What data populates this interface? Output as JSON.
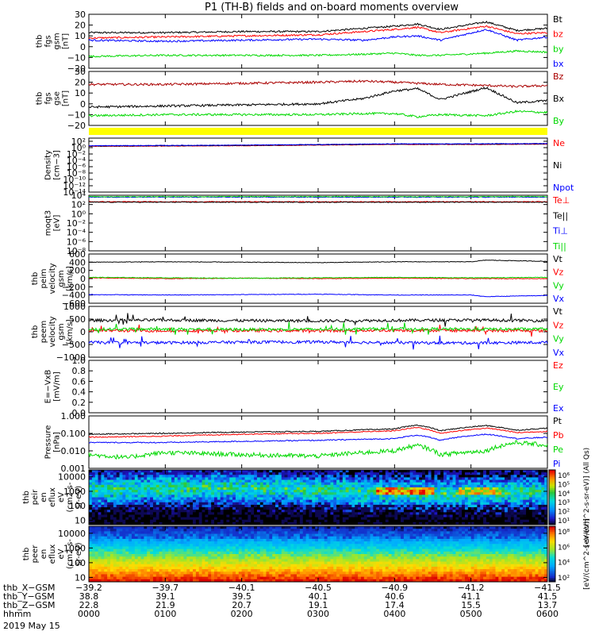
{
  "title": "P1 (TH-B) fields and on-board moments overview",
  "date_label": "2019 May 15",
  "colors": {
    "black": "#000000",
    "red": "#ff0000",
    "darkred": "#aa0000",
    "green": "#00d800",
    "blue": "#0000ff",
    "yellow": "#ffff00"
  },
  "chart_data": [
    {
      "type": "line",
      "ylabel_lines": [
        "thb",
        "fgs",
        "gsm",
        "[nT]"
      ],
      "ylim": [
        -20,
        30
      ],
      "yticks": [
        -20,
        -10,
        0,
        10,
        20,
        30
      ],
      "tick_labels": [
        "−20",
        "−10",
        "0",
        "10",
        "20",
        "30"
      ],
      "series": [
        {
          "name": "Bt",
          "color": "#000000",
          "x": [
            0,
            1,
            2,
            3,
            3.6,
            4.0,
            4.3,
            4.6,
            5.2,
            5.6,
            6.0
          ],
          "values": [
            13,
            13,
            14,
            14,
            17,
            19,
            21,
            16,
            23,
            15,
            17
          ]
        },
        {
          "name": "bz",
          "color": "#ff0000",
          "x": [
            0,
            1,
            2,
            3,
            3.6,
            4.0,
            4.3,
            4.6,
            5.2,
            5.6,
            6.0
          ],
          "values": [
            8,
            9,
            10,
            11,
            14,
            16,
            18,
            13,
            19,
            12,
            13
          ]
        },
        {
          "name": "by",
          "color": "#00d800",
          "x": [
            0,
            1,
            2,
            3,
            3.6,
            4.0,
            4.3,
            4.6,
            5.2,
            5.6,
            6.0
          ],
          "values": [
            -9,
            -8,
            -8,
            -8,
            -7,
            -6,
            -8,
            -8,
            -6,
            -4,
            -5
          ]
        },
        {
          "name": "bx",
          "color": "#0000ff",
          "x": [
            0,
            1,
            2,
            3,
            3.6,
            4.0,
            4.3,
            4.6,
            5.2,
            5.6,
            6.0
          ],
          "values": [
            6,
            5,
            6,
            7,
            6,
            9,
            10,
            6,
            16,
            6,
            9
          ]
        }
      ]
    },
    {
      "type": "line",
      "ylabel_lines": [
        "thb",
        "fgs",
        "gse",
        "[nT]"
      ],
      "ylim": [
        -20,
        30
      ],
      "yticks": [
        -20,
        -10,
        0,
        10,
        20,
        30
      ],
      "tick_labels": [
        "−20",
        "−10",
        "0",
        "10",
        "20",
        "30"
      ],
      "series": [
        {
          "name": "Bz",
          "color": "#aa0000",
          "x": [
            0,
            1,
            2,
            3,
            3.6,
            4.0,
            4.3,
            4.6,
            5.2,
            5.6,
            6.0
          ],
          "values": [
            18,
            18,
            19,
            20,
            21,
            20,
            19,
            18,
            17,
            16,
            17
          ]
        },
        {
          "name": "Bx",
          "color": "#000000",
          "x": [
            0,
            1,
            2,
            3,
            3.6,
            4.0,
            4.3,
            4.6,
            5.2,
            5.6,
            6.0
          ],
          "values": [
            -3,
            -2,
            -1,
            0,
            5,
            12,
            14,
            4,
            15,
            1,
            3
          ]
        },
        {
          "name": "By",
          "color": "#00d800",
          "x": [
            0,
            1,
            2,
            3,
            3.6,
            4.0,
            4.3,
            4.6,
            5.2,
            5.6,
            6.0
          ],
          "values": [
            -11,
            -10,
            -10,
            -10,
            -9,
            -9,
            -12,
            -10,
            -11,
            -7,
            -8
          ]
        }
      ]
    },
    {
      "type": "line",
      "ylabel_lines": [
        "Density",
        "[cm−3]"
      ],
      "yscale": "log",
      "ylim": [
        -14,
        3
      ],
      "yticks": [
        2,
        0,
        -2,
        -4,
        -6,
        -8,
        -10,
        -12,
        -14
      ],
      "tick_labels": [
        "10²",
        "10⁰",
        "10⁻²",
        "10⁻⁴",
        "10⁻⁶",
        "10⁻⁸",
        "10⁻¹⁰",
        "10⁻¹²",
        "10⁻¹⁴"
      ],
      "series": [
        {
          "name": "Ne",
          "color": "#ff0000",
          "x": [
            0,
            1,
            2,
            3,
            4,
            5,
            6
          ],
          "values": [
            0.4,
            0.5,
            0.6,
            0.8,
            1.0,
            1.0,
            1.1
          ]
        },
        {
          "name": "Ni",
          "color": "#000000",
          "x": [
            0,
            1,
            2,
            3,
            4,
            5,
            6
          ],
          "values": [
            0.5,
            0.6,
            0.7,
            0.9,
            1.1,
            1.1,
            1.2
          ]
        },
        {
          "name": "Npot",
          "color": "#0000ff",
          "x": [
            0,
            1,
            2,
            3,
            4,
            5,
            6
          ],
          "values": [
            0.6,
            0.7,
            0.8,
            1.0,
            1.2,
            1.2,
            1.3
          ]
        }
      ]
    },
    {
      "type": "line",
      "ylabel_lines": [
        "moqt3",
        "[eV]"
      ],
      "yscale": "log",
      "ylim": [
        -8,
        4
      ],
      "yticks": [
        4,
        2,
        0,
        -2,
        -4,
        -6,
        -8
      ],
      "tick_labels": [
        "10⁴",
        "10²",
        "10⁰",
        "10⁻²",
        "10⁻⁴",
        "10⁻⁶",
        "10⁻⁸"
      ],
      "series": [
        {
          "name": "Te⊥",
          "color": "#ff0000",
          "x": [
            0,
            1,
            2,
            3,
            4,
            5,
            6
          ],
          "values": [
            2.6,
            2.6,
            2.6,
            2.6,
            2.6,
            2.6,
            2.6
          ]
        },
        {
          "name": "Te||",
          "color": "#000000",
          "x": [
            0,
            1,
            2,
            3,
            4,
            5,
            6
          ],
          "values": [
            2.5,
            2.5,
            2.5,
            2.5,
            2.5,
            2.5,
            2.5
          ]
        },
        {
          "name": "Ti⊥",
          "color": "#0000ff",
          "x": [
            0,
            1,
            2,
            3,
            4,
            5,
            6
          ],
          "values": [
            3.6,
            3.6,
            3.6,
            3.6,
            3.6,
            3.6,
            3.6
          ]
        },
        {
          "name": "Ti||",
          "color": "#00d800",
          "x": [
            0,
            1,
            2,
            3,
            4,
            5,
            6
          ],
          "values": [
            3.7,
            3.7,
            3.7,
            3.7,
            3.7,
            3.7,
            3.7
          ]
        }
      ]
    },
    {
      "type": "line",
      "ylabel_lines": [
        "thb",
        "peim",
        "velocity",
        "gsm",
        "[km/s]"
      ],
      "ylim": [
        -600,
        600
      ],
      "yticks": [
        600,
        400,
        200,
        0,
        -200,
        -400,
        -600
      ],
      "tick_labels": [
        "600",
        "400",
        "200",
        "0",
        "−200",
        "−400",
        "−600"
      ],
      "series": [
        {
          "name": "Vt",
          "color": "#000000",
          "x": [
            0,
            1,
            2,
            3,
            4,
            5,
            5.2,
            6
          ],
          "values": [
            400,
            410,
            400,
            390,
            410,
            410,
            450,
            420
          ]
        },
        {
          "name": "Vz",
          "color": "#ff0000",
          "x": [
            0,
            1,
            2,
            3,
            4,
            5,
            6
          ],
          "values": [
            20,
            0,
            10,
            0,
            10,
            0,
            0
          ]
        },
        {
          "name": "Vy",
          "color": "#00d800",
          "x": [
            0,
            1,
            2,
            3,
            4,
            5,
            6
          ],
          "values": [
            30,
            20,
            10,
            20,
            30,
            20,
            30
          ]
        },
        {
          "name": "Vx",
          "color": "#0000ff",
          "x": [
            0,
            1,
            2,
            3,
            4,
            5,
            5.2,
            6
          ],
          "values": [
            -390,
            -400,
            -390,
            -380,
            -400,
            -400,
            -440,
            -410
          ]
        }
      ]
    },
    {
      "type": "line",
      "ylabel_lines": [
        "thb",
        "peem",
        "velocity",
        "gsm",
        "[km/s]"
      ],
      "ylim": [
        -1000,
        1000
      ],
      "yticks": [
        1000,
        500,
        0,
        -500,
        -1000
      ],
      "tick_labels": [
        "1000",
        "500",
        "0",
        "−500",
        "−1000"
      ],
      "series": [
        {
          "name": "Vt",
          "color": "#000000",
          "x": [
            0,
            1,
            2,
            3,
            4,
            5,
            6
          ],
          "values": [
            450,
            460,
            440,
            430,
            450,
            460,
            440
          ]
        },
        {
          "name": "Vz",
          "color": "#ff0000",
          "x": [
            0,
            1,
            2,
            3,
            4,
            5,
            6
          ],
          "values": [
            50,
            40,
            50,
            40,
            60,
            50,
            40
          ]
        },
        {
          "name": "Vy",
          "color": "#00d800",
          "x": [
            0,
            1,
            2,
            3,
            4,
            5,
            6
          ],
          "values": [
            100,
            110,
            90,
            100,
            120,
            100,
            110
          ]
        },
        {
          "name": "Vx",
          "color": "#0000ff",
          "x": [
            0,
            1,
            2,
            3,
            4,
            5,
            6
          ],
          "values": [
            -420,
            -430,
            -410,
            -400,
            -430,
            -440,
            -420
          ]
        }
      ]
    },
    {
      "type": "line",
      "ylabel_lines": [
        "E=−VxB",
        "[mV/m]"
      ],
      "ylim": [
        0,
        1
      ],
      "yticks": [
        0,
        0.2,
        0.4,
        0.6,
        0.8,
        1.0
      ],
      "tick_labels": [
        "0.0",
        "0.2",
        "0.4",
        "0.6",
        "0.8",
        "1.0"
      ],
      "series": [
        {
          "name": "Ez",
          "color": "#ff0000",
          "x": [],
          "values": []
        },
        {
          "name": "Ey",
          "color": "#00d800",
          "x": [],
          "values": []
        },
        {
          "name": "Ex",
          "color": "#0000ff",
          "x": [],
          "values": []
        }
      ]
    },
    {
      "type": "line",
      "ylabel_lines": [
        "Pressure",
        "[nPa]"
      ],
      "yscale": "log",
      "ylim": [
        -3,
        0
      ],
      "yticks": [
        0,
        -1,
        -2,
        -3
      ],
      "tick_labels": [
        "1.000",
        "0.100",
        "0.010",
        "0.001"
      ],
      "series": [
        {
          "name": "Pt",
          "color": "#000000",
          "x": [
            0,
            1,
            2,
            3,
            4,
            4.3,
            4.6,
            5.2,
            5.6,
            6.0
          ],
          "values": [
            0.09,
            0.1,
            0.12,
            0.13,
            0.18,
            0.3,
            0.14,
            0.28,
            0.15,
            0.2
          ]
        },
        {
          "name": "Pb",
          "color": "#ff0000",
          "x": [
            0,
            1,
            2,
            3,
            4,
            4.3,
            4.6,
            5.2,
            5.6,
            6.0
          ],
          "values": [
            0.06,
            0.07,
            0.09,
            0.1,
            0.14,
            0.22,
            0.1,
            0.2,
            0.11,
            0.13
          ]
        },
        {
          "name": "Pe",
          "color": "#00d800",
          "x": [
            0,
            0.5,
            1,
            2,
            3,
            4,
            4.3,
            4.6,
            5.2,
            5.6,
            6.0
          ],
          "values": [
            0.006,
            0.004,
            0.008,
            0.006,
            0.005,
            0.01,
            0.02,
            0.006,
            0.01,
            0.03,
            0.02
          ]
        },
        {
          "name": "Pi",
          "color": "#0000ff",
          "x": [
            0,
            1,
            2,
            3,
            4,
            4.3,
            4.6,
            5.2,
            5.6,
            6.0
          ],
          "values": [
            0.03,
            0.03,
            0.035,
            0.04,
            0.05,
            0.08,
            0.04,
            0.09,
            0.05,
            0.06
          ]
        }
      ]
    },
    {
      "type": "heatmap",
      "ylabel_lines": [
        "thb",
        "peir",
        "en",
        "eflux",
        "eV",
        "(cm2-s-",
        "sr-eV)"
      ],
      "yscale": "log",
      "ylim": [
        5,
        30000
      ],
      "yticks": [
        10,
        100,
        1000,
        10000
      ],
      "tick_labels": [
        "10",
        "100",
        "1000",
        "10000"
      ],
      "colorbar": {
        "label": "[eV/(cm^2-s-sr-eV)] (All Qs)",
        "range_exp": [
          1,
          6
        ],
        "tick_labels": [
          "10¹",
          "10²",
          "10³",
          "10⁴",
          "10⁵",
          "10⁶"
        ]
      }
    },
    {
      "type": "heatmap",
      "ylabel_lines": [
        "thb",
        "peer",
        "en",
        "eflux",
        "eV",
        "(cm2-s-",
        "sr-eV)"
      ],
      "yscale": "log",
      "ylim": [
        5,
        30000
      ],
      "yticks": [
        10,
        100,
        1000,
        10000
      ],
      "tick_labels": [
        "10",
        "100",
        "1000",
        "10000"
      ],
      "colorbar": {
        "label": "[eV/(cm^2-s-sr-eV)]",
        "range_exp": [
          1,
          9
        ],
        "tick_labels": [
          "10²",
          "10⁴",
          "10⁶",
          "10⁸"
        ]
      }
    }
  ],
  "x_axis": {
    "xlim": [
      0,
      6
    ],
    "ticks": [
      0,
      1,
      2,
      3,
      4,
      5,
      6
    ],
    "rows": [
      {
        "label": "thb_X−GSM",
        "values": [
          "−39.2",
          "−39.7",
          "−40.1",
          "−40.5",
          "−40.9",
          "−41.2",
          "−41.5"
        ]
      },
      {
        "label": "thb_Y−GSM",
        "values": [
          "38.8",
          "39.1",
          "39.5",
          "40.1",
          "40.6",
          "41.1",
          "41.5"
        ]
      },
      {
        "label": "thb_Z−GSM",
        "values": [
          "22.8",
          "21.9",
          "20.7",
          "19.1",
          "17.4",
          "15.5",
          "13.7"
        ]
      },
      {
        "label": "hhmm",
        "values": [
          "0000",
          "0100",
          "0200",
          "0300",
          "0400",
          "0500",
          "0600"
        ]
      }
    ]
  }
}
